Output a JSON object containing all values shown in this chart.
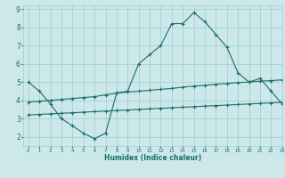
{
  "xlabel": "Humidex (Indice chaleur)",
  "xlim": [
    -0.5,
    23
  ],
  "ylim": [
    1.5,
    9.2
  ],
  "yticks": [
    2,
    3,
    4,
    5,
    6,
    7,
    8,
    9
  ],
  "xticks": [
    0,
    1,
    2,
    3,
    4,
    5,
    6,
    7,
    8,
    9,
    10,
    11,
    12,
    13,
    14,
    15,
    16,
    17,
    18,
    19,
    20,
    21,
    22,
    23
  ],
  "bg_color": "#cce8ea",
  "grid_color": "#9ecdd1",
  "line_color": "#1a6e66",
  "curve1_x": [
    0,
    1,
    2,
    3,
    4,
    5,
    6,
    7,
    8,
    9,
    10,
    11,
    12,
    13,
    14,
    15,
    16,
    17,
    18,
    19,
    20,
    21,
    22,
    23
  ],
  "curve1_y": [
    5.0,
    4.5,
    3.8,
    3.0,
    2.6,
    2.2,
    1.9,
    2.2,
    4.4,
    4.5,
    6.0,
    6.5,
    7.0,
    8.2,
    8.2,
    8.8,
    8.3,
    7.6,
    6.9,
    5.5,
    5.0,
    5.2,
    4.5,
    3.8
  ],
  "curve2_x": [
    0,
    1,
    2,
    3,
    4,
    5,
    6,
    7,
    8,
    9,
    10,
    11,
    12,
    13,
    14,
    15,
    16,
    17,
    18,
    19,
    20,
    21,
    22,
    23
  ],
  "curve2_y": [
    3.9,
    3.95,
    4.0,
    4.05,
    4.1,
    4.15,
    4.2,
    4.3,
    4.4,
    4.45,
    4.5,
    4.55,
    4.6,
    4.65,
    4.72,
    4.78,
    4.82,
    4.88,
    4.92,
    4.97,
    5.0,
    5.05,
    5.08,
    5.12
  ],
  "curve3_x": [
    0,
    1,
    2,
    3,
    4,
    5,
    6,
    7,
    8,
    9,
    10,
    11,
    12,
    13,
    14,
    15,
    16,
    17,
    18,
    19,
    20,
    21,
    22,
    23
  ],
  "curve3_y": [
    3.2,
    3.23,
    3.26,
    3.29,
    3.32,
    3.35,
    3.38,
    3.41,
    3.44,
    3.47,
    3.5,
    3.53,
    3.56,
    3.59,
    3.62,
    3.65,
    3.68,
    3.71,
    3.74,
    3.77,
    3.8,
    3.83,
    3.86,
    3.89
  ]
}
